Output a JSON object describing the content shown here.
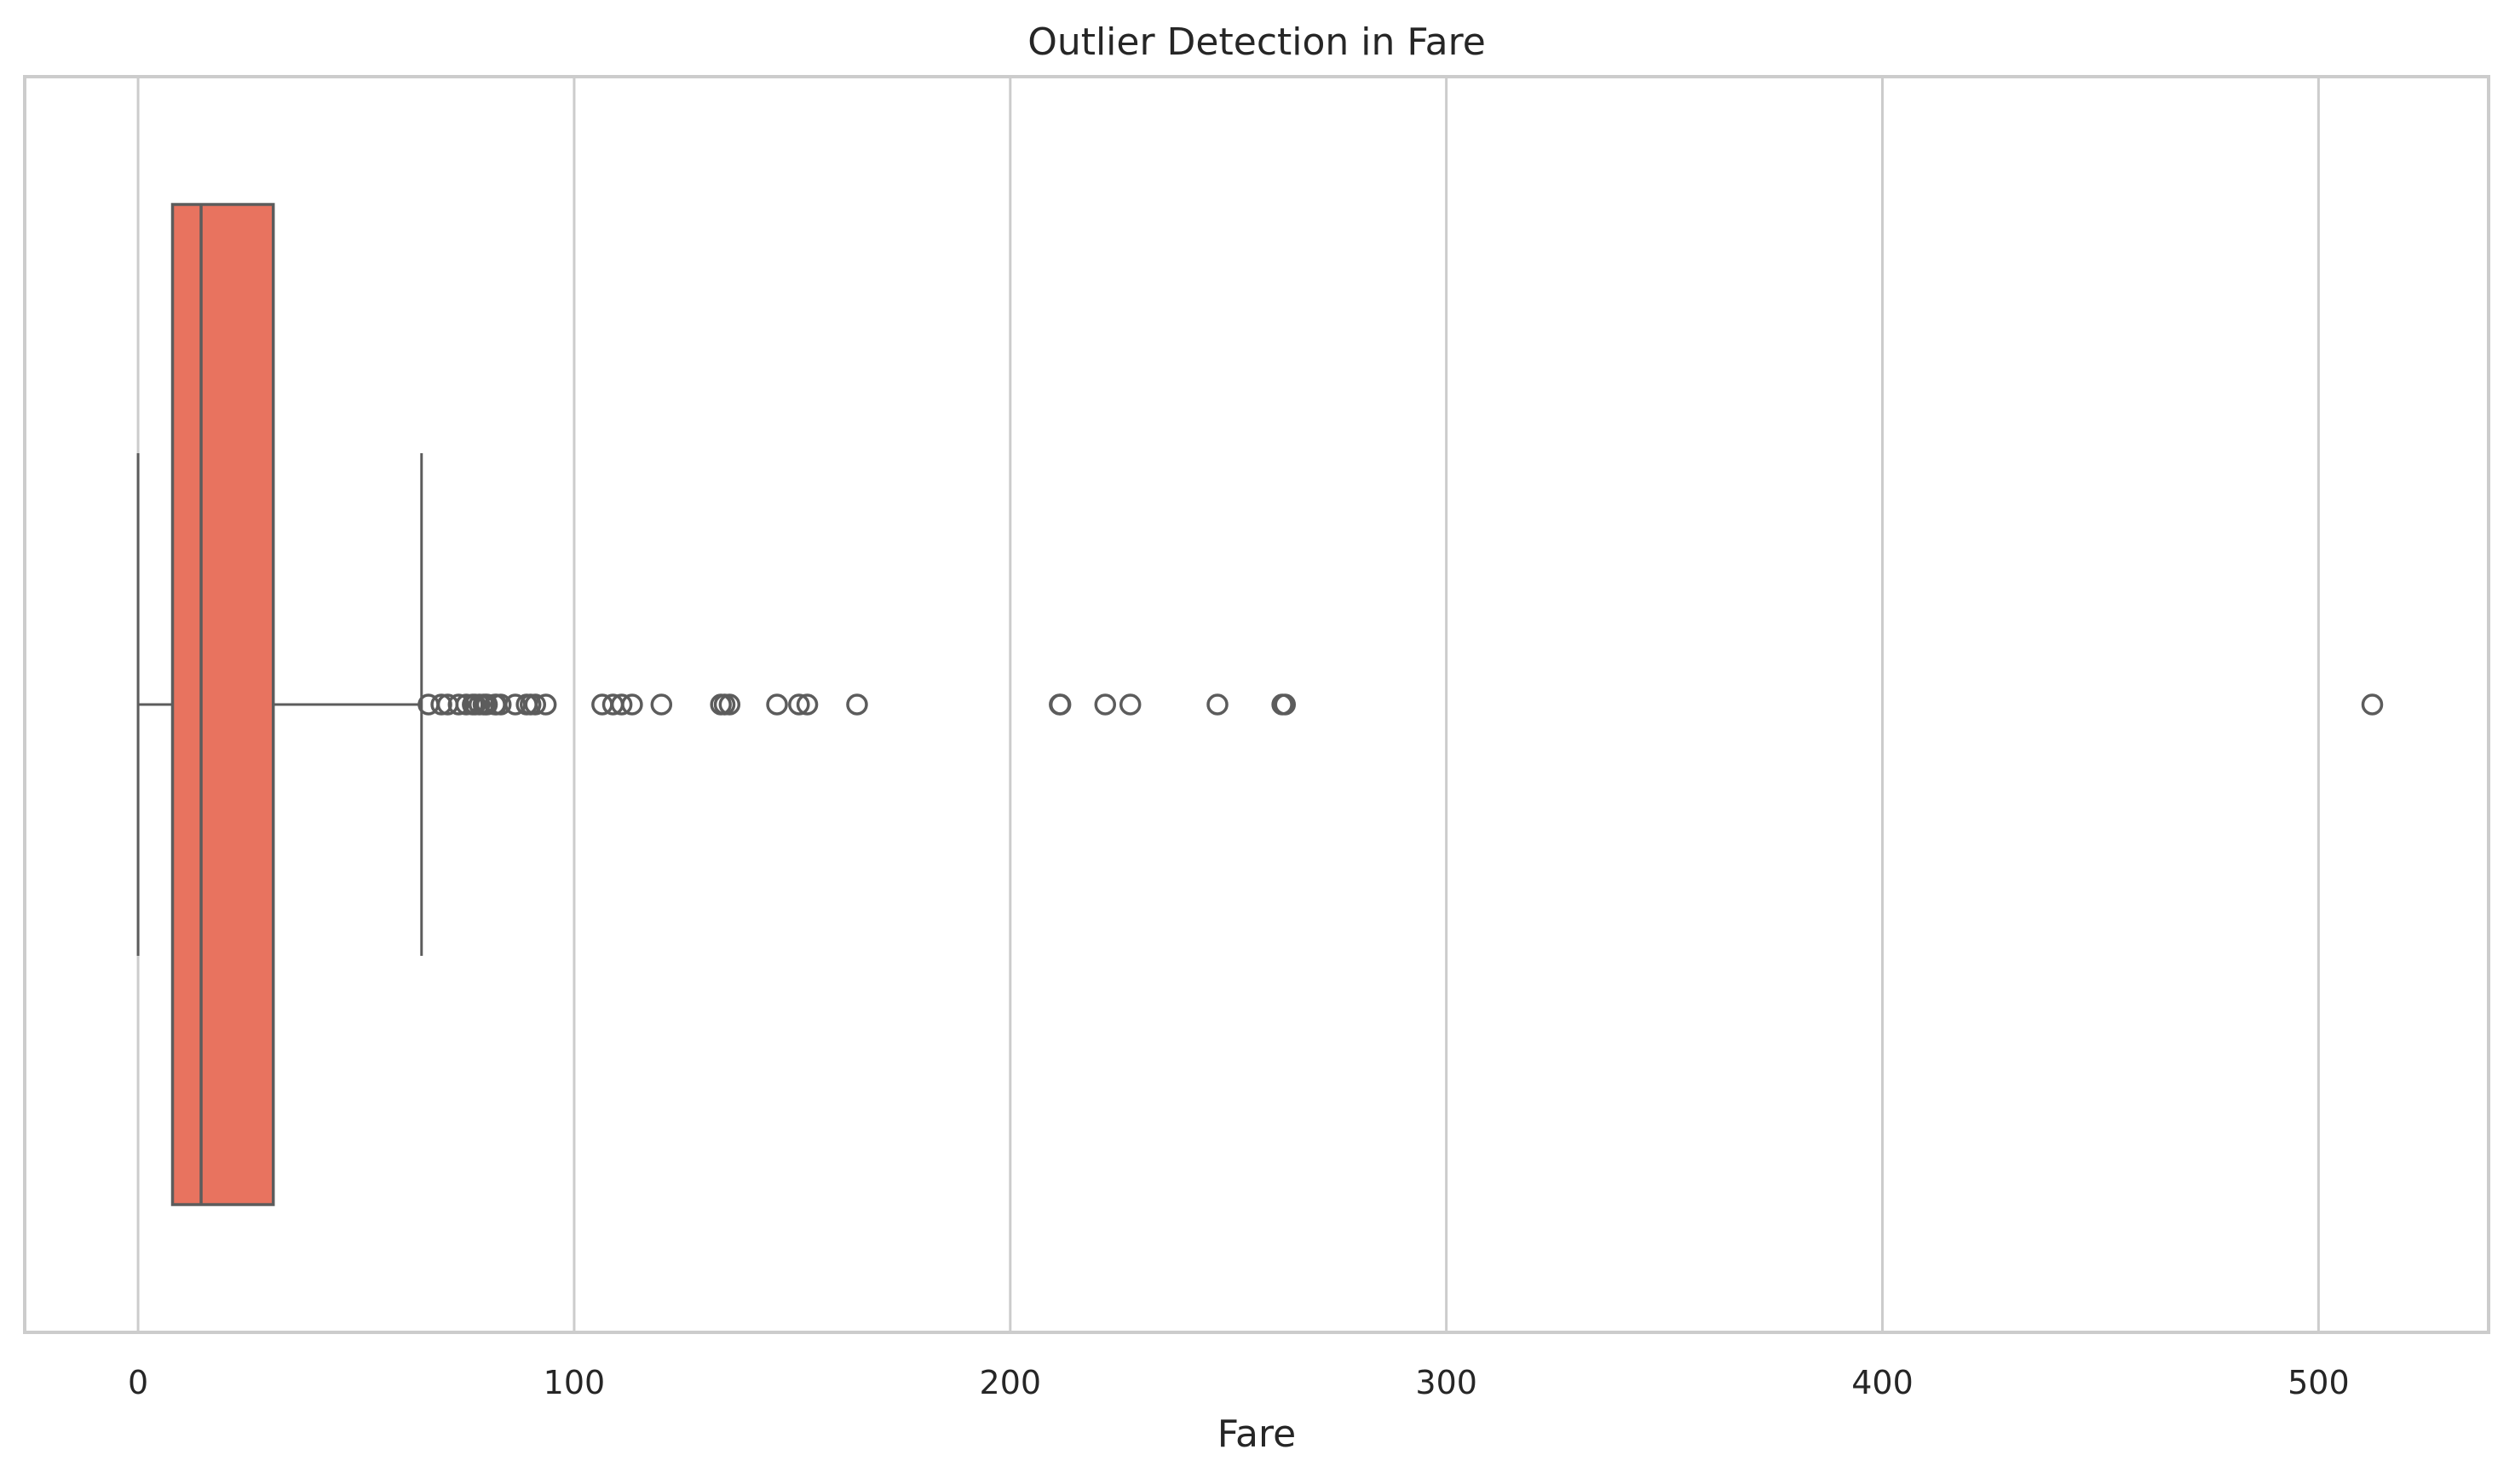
{
  "chart_data": {
    "type": "boxplot",
    "orientation": "horizontal",
    "title": "Outlier Detection in Fare",
    "xlabel": "Fare",
    "ylabel": "",
    "xlim": [
      -26,
      539
    ],
    "x_ticks": [
      0,
      100,
      200,
      300,
      400,
      500
    ],
    "x_tick_labels": [
      "0",
      "100",
      "200",
      "300",
      "400",
      "500"
    ],
    "grid": "vertical",
    "box": {
      "whisker_low": 0,
      "q1": 7.9,
      "median": 14.45,
      "q3": 31,
      "whisker_high": 65
    },
    "outliers": [
      66.6,
      69.55,
      71,
      73.5,
      75.25,
      76.73,
      77.29,
      78.27,
      79.2,
      79.65,
      80,
      81.86,
      82.17,
      83.16,
      86.5,
      89.1,
      90,
      91.08,
      93.5,
      106.43,
      108.9,
      110.88,
      113.28,
      120,
      133.65,
      134.5,
      135.63,
      146.52,
      151.55,
      153.46,
      164.87,
      211.34,
      211.5,
      221.78,
      227.53,
      247.52,
      262.38,
      263,
      512.33
    ]
  },
  "colors": {
    "box_fill": "#e8735f",
    "box_edge": "#5c5c5c",
    "grid": "#cccccc",
    "spine": "#cccccc",
    "text": "#262626"
  }
}
